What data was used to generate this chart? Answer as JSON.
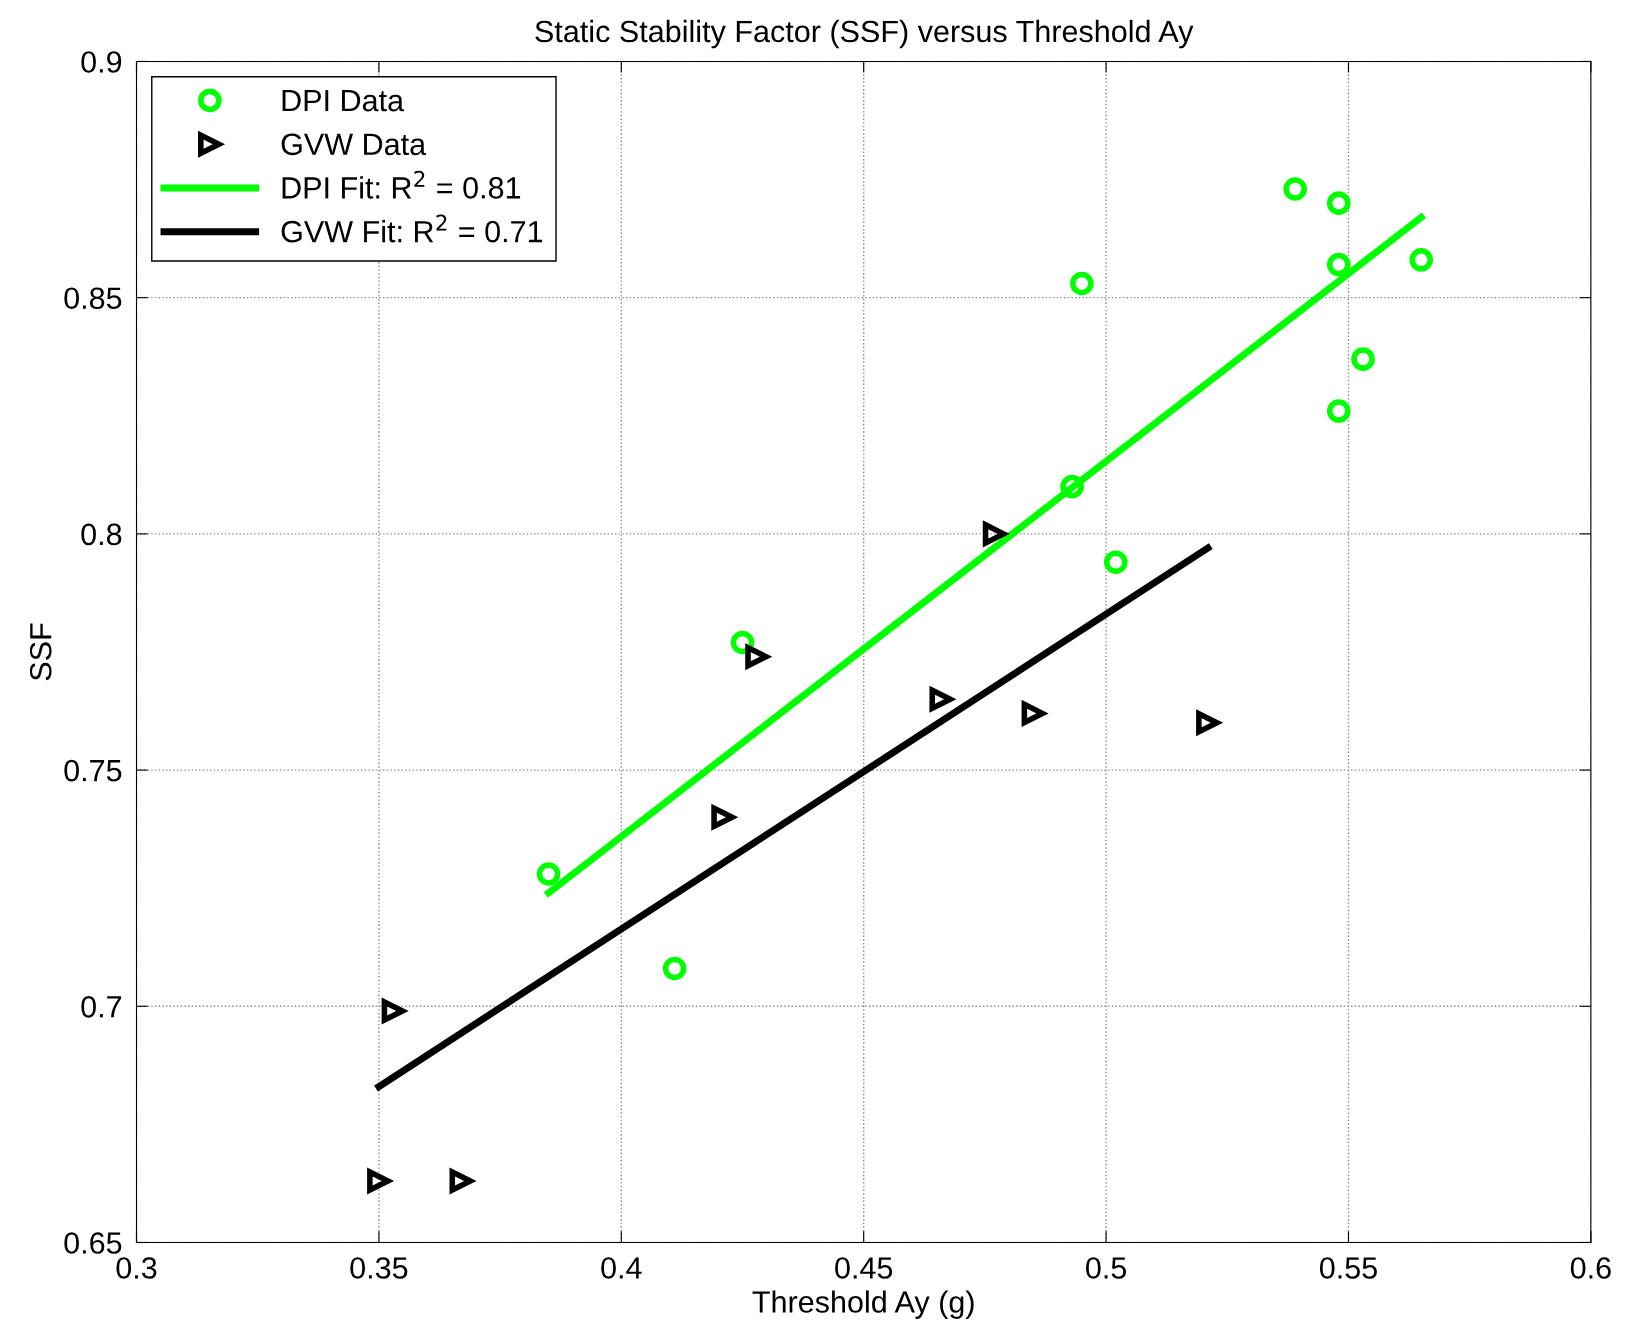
{
  "chart_data": {
    "type": "scatter",
    "title": "Static Stability Factor (SSF) versus Threshold Ay",
    "xlabel": "Threshold Ay (g)",
    "ylabel": "SSF",
    "xlim": [
      0.3,
      0.6
    ],
    "ylim": [
      0.65,
      0.9
    ],
    "xticks": [
      0.3,
      0.35,
      0.4,
      0.45,
      0.5,
      0.55,
      0.6
    ],
    "yticks": [
      0.65,
      0.7,
      0.75,
      0.8,
      0.85,
      0.9
    ],
    "grid": true,
    "legend": "top left",
    "series": [
      {
        "name": "DPI Data",
        "marker": "circle",
        "color": "#00ff00",
        "x": [
          0.385,
          0.425,
          0.411,
          0.493,
          0.495,
          0.502,
          0.539,
          0.548,
          0.548,
          0.548,
          0.553,
          0.565
        ],
        "values": [
          0.728,
          0.777,
          0.708,
          0.81,
          0.853,
          0.794,
          0.873,
          0.87,
          0.857,
          0.826,
          0.837,
          0.858
        ]
      },
      {
        "name": "GVW Data",
        "marker": "triangle",
        "color": "#000000",
        "x": [
          0.35,
          0.367,
          0.353,
          0.421,
          0.428,
          0.466,
          0.477,
          0.485,
          0.521
        ],
        "values": [
          0.663,
          0.663,
          0.699,
          0.74,
          0.774,
          0.765,
          0.8,
          0.762,
          0.76
        ]
      },
      {
        "name": "DPI Fit: R$^{2}$ = 0.81",
        "type": "line",
        "line_style": "solid",
        "color": "#00ff00",
        "x": [
          0.385,
          0.565
        ],
        "values": [
          0.724,
          0.867
        ]
      },
      {
        "name": "GVW Fit: R$^{2}$ = 0.71",
        "type": "line",
        "line_style": "solid",
        "color": "#000000",
        "x": [
          0.35,
          0.521
        ],
        "values": [
          0.683,
          0.797
        ]
      }
    ]
  }
}
